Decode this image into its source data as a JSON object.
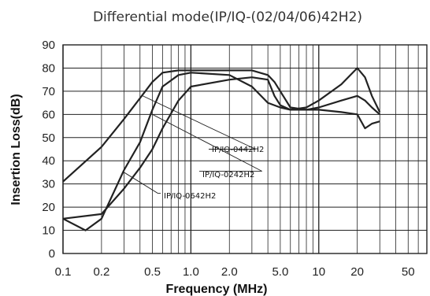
{
  "chart_data": {
    "type": "line",
    "title": "Differential mode(IP/IQ-(02/04/06)42H2)",
    "xlabel": "Frequency (MHz)",
    "ylabel": "Insertion Loss(dB)",
    "x_scale": "log",
    "xlim": [
      0.1,
      70
    ],
    "ylim": [
      0,
      90
    ],
    "grid": true,
    "x_ticks": [
      {
        "value": 0.1,
        "label": "0.1"
      },
      {
        "value": 0.2,
        "label": "0.2"
      },
      {
        "value": 0.5,
        "label": "0.5"
      },
      {
        "value": 1.0,
        "label": "1.0"
      },
      {
        "value": 2.0,
        "label": "2.0"
      },
      {
        "value": 5.0,
        "label": "5.0"
      },
      {
        "value": 10,
        "label": "10"
      },
      {
        "value": 20,
        "label": "20"
      },
      {
        "value": 50,
        "label": "50"
      }
    ],
    "y_ticks": [
      0,
      10,
      20,
      30,
      40,
      50,
      60,
      70,
      80,
      90
    ],
    "series": [
      {
        "name": "IP/IQ-0442H2",
        "x": [
          0.1,
          0.2,
          0.3,
          0.4,
          0.5,
          0.6,
          0.8,
          1.0,
          2.0,
          3.0,
          4.0,
          4.5,
          5.0,
          6.0,
          8.0,
          10,
          15,
          20,
          23,
          26,
          30
        ],
        "y": [
          31,
          46,
          58,
          67,
          74,
          78,
          79,
          79,
          79,
          79,
          77,
          74,
          70,
          63,
          62,
          62,
          61,
          60,
          54,
          56,
          57
        ]
      },
      {
        "name": "IP/IQ-0242H2",
        "x": [
          0.1,
          0.2,
          0.3,
          0.4,
          0.5,
          0.6,
          0.8,
          1.0,
          2.0,
          3.0,
          4.0,
          4.5,
          5.0,
          6.0,
          8.0,
          10,
          15,
          20,
          23,
          26,
          30
        ],
        "y": [
          15,
          17,
          28,
          37,
          45,
          54,
          66,
          72,
          75,
          76,
          75,
          68,
          64,
          62,
          62,
          63,
          66,
          68,
          66,
          63,
          60
        ]
      },
      {
        "name": "IP/IQ-0642H2",
        "x": [
          0.1,
          0.15,
          0.2,
          0.3,
          0.4,
          0.5,
          0.6,
          0.8,
          1.0,
          2.0,
          3.0,
          4.0,
          5.0,
          6.0,
          8.0,
          10,
          15,
          20,
          23,
          26,
          30
        ],
        "y": [
          15,
          10,
          15,
          36,
          48,
          62,
          72,
          77,
          78,
          77,
          72,
          65,
          63,
          62,
          63,
          66,
          73,
          80,
          76,
          68,
          61
        ]
      }
    ],
    "annotations": [
      {
        "text": "IP/IQ-0442H2",
        "series": "IP/IQ-0442H2"
      },
      {
        "text": "IP/IQ-0242H2",
        "series": "IP/IQ-0242H2"
      },
      {
        "text": "IP/IQ-0642H2",
        "series": "IP/IQ-0642H2"
      }
    ],
    "colors": {
      "line": "#222222",
      "grid": "#222222",
      "text": "#222222"
    }
  }
}
